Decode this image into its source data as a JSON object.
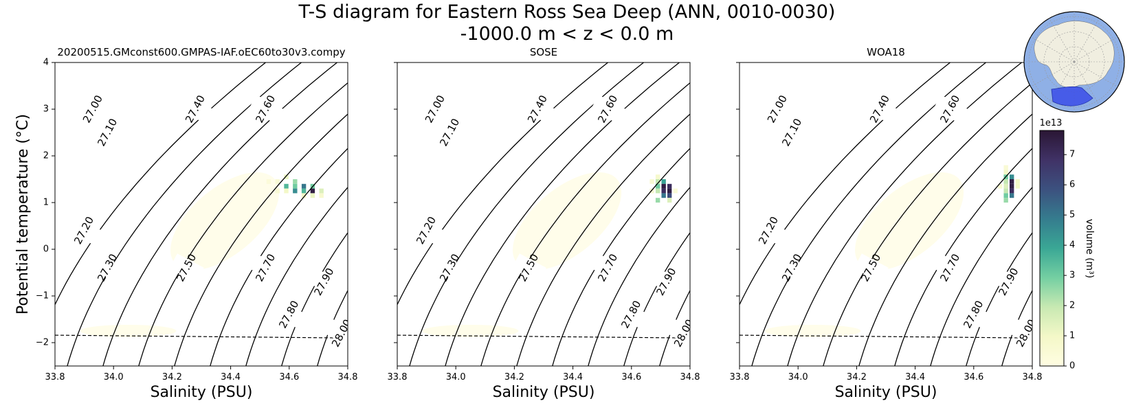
{
  "figure": {
    "title_line1": "T-S diagram for Eastern Ross Sea Deep (ANN, 0010-0030)",
    "title_line2": "-1000.0 m < z < 0.0 m"
  },
  "chart_data": [
    {
      "type": "heatmap",
      "title": "20200515.GMconst600.GMPAS-IAF.oEC60to30v3.compy",
      "xlabel": "Salinity (PSU)",
      "ylabel": "Potential temperature ($^\\circ$C)",
      "xlim": [
        33.8,
        34.8
      ],
      "ylim": [
        -2.5,
        4
      ],
      "xticks": [
        "33.8",
        "34.0",
        "34.2",
        "34.4",
        "34.6",
        "34.8"
      ],
      "yticks": [
        "−2",
        "−1",
        "0",
        "1",
        "2",
        "3",
        "4"
      ],
      "density_contours": [
        "27.00",
        "27.10",
        "27.20",
        "27.30",
        "27.40",
        "27.50",
        "27.60",
        "27.70",
        "27.80",
        "27.90",
        "28.00"
      ],
      "freezing_line": [
        [
          33.8,
          -1.84
        ],
        [
          34.8,
          -1.9
        ]
      ],
      "volume_bins": [
        {
          "s": 34.53,
          "t": 1.45,
          "v": 0.3
        },
        {
          "s": 34.56,
          "t": 1.45,
          "v": 0.5
        },
        {
          "s": 34.59,
          "t": 1.55,
          "v": 1.2
        },
        {
          "s": 34.62,
          "t": 1.45,
          "v": 2.5
        },
        {
          "s": 34.59,
          "t": 1.35,
          "v": 3.5
        },
        {
          "s": 34.62,
          "t": 1.35,
          "v": 3.0
        },
        {
          "s": 34.65,
          "t": 1.35,
          "v": 5.0
        },
        {
          "s": 34.68,
          "t": 1.35,
          "v": 3.0
        },
        {
          "s": 34.62,
          "t": 1.25,
          "v": 4.5
        },
        {
          "s": 34.65,
          "t": 1.25,
          "v": 3.5
        },
        {
          "s": 34.68,
          "t": 1.25,
          "v": 7.5
        },
        {
          "s": 34.71,
          "t": 1.25,
          "v": 1.5
        },
        {
          "s": 34.59,
          "t": 1.25,
          "v": 1.0
        },
        {
          "s": 34.65,
          "t": 1.15,
          "v": 1.0
        },
        {
          "s": 34.68,
          "t": 1.15,
          "v": 1.2
        },
        {
          "s": 34.71,
          "t": 1.15,
          "v": 0.7
        },
        {
          "s": 34.56,
          "t": 1.25,
          "v": 0.5
        }
      ]
    },
    {
      "type": "heatmap",
      "title": "SOSE",
      "xlabel": "Salinity (PSU)",
      "xlim": [
        33.8,
        34.8
      ],
      "ylim": [
        -2.5,
        4
      ],
      "xticks": [
        "33.8",
        "34.0",
        "34.2",
        "34.4",
        "34.6",
        "34.8"
      ],
      "density_contours": [
        "27.00",
        "27.10",
        "27.20",
        "27.30",
        "27.40",
        "27.50",
        "27.60",
        "27.70",
        "27.80",
        "27.90",
        "28.00"
      ],
      "freezing_line": [
        [
          33.8,
          -1.84
        ],
        [
          34.8,
          -1.9
        ]
      ],
      "volume_bins": [
        {
          "s": 34.69,
          "t": 1.55,
          "v": 0.8
        },
        {
          "s": 34.69,
          "t": 1.45,
          "v": 2.0
        },
        {
          "s": 34.69,
          "t": 1.35,
          "v": 3.0
        },
        {
          "s": 34.69,
          "t": 1.25,
          "v": 2.0
        },
        {
          "s": 34.69,
          "t": 1.05,
          "v": 2.5
        },
        {
          "s": 34.71,
          "t": 1.45,
          "v": 4.0
        },
        {
          "s": 34.71,
          "t": 1.35,
          "v": 7.5
        },
        {
          "s": 34.71,
          "t": 1.25,
          "v": 7.0
        },
        {
          "s": 34.71,
          "t": 1.15,
          "v": 5.0
        },
        {
          "s": 34.73,
          "t": 1.35,
          "v": 7.0
        },
        {
          "s": 34.73,
          "t": 1.25,
          "v": 7.5
        },
        {
          "s": 34.73,
          "t": 1.15,
          "v": 6.0
        },
        {
          "s": 34.67,
          "t": 1.25,
          "v": 0.6
        },
        {
          "s": 34.67,
          "t": 1.45,
          "v": 0.6
        },
        {
          "s": 34.73,
          "t": 1.05,
          "v": 1.5
        },
        {
          "s": 34.75,
          "t": 1.25,
          "v": 0.5
        }
      ]
    },
    {
      "type": "heatmap",
      "title": "WOA18",
      "xlabel": "Salinity (PSU)",
      "xlim": [
        33.8,
        34.8
      ],
      "ylim": [
        -2.5,
        4
      ],
      "xticks": [
        "33.8",
        "34.0",
        "34.2",
        "34.4",
        "34.6",
        "34.8"
      ],
      "density_contours": [
        "27.00",
        "27.10",
        "27.20",
        "27.30",
        "27.40",
        "27.50",
        "27.60",
        "27.70",
        "27.80",
        "27.90",
        "28.00"
      ],
      "freezing_line": [
        [
          33.8,
          -1.84
        ],
        [
          34.8,
          -1.9
        ]
      ],
      "volume_bins": [
        {
          "s": 34.71,
          "t": 1.75,
          "v": 0.5
        },
        {
          "s": 34.71,
          "t": 1.65,
          "v": 1.0
        },
        {
          "s": 34.71,
          "t": 1.55,
          "v": 3.0
        },
        {
          "s": 34.71,
          "t": 1.45,
          "v": 2.0
        },
        {
          "s": 34.71,
          "t": 1.35,
          "v": 1.5
        },
        {
          "s": 34.71,
          "t": 1.25,
          "v": 2.0
        },
        {
          "s": 34.71,
          "t": 1.15,
          "v": 3.0
        },
        {
          "s": 34.71,
          "t": 1.05,
          "v": 2.5
        },
        {
          "s": 34.73,
          "t": 1.55,
          "v": 4.5
        },
        {
          "s": 34.73,
          "t": 1.45,
          "v": 7.5
        },
        {
          "s": 34.73,
          "t": 1.35,
          "v": 7.5
        },
        {
          "s": 34.73,
          "t": 1.25,
          "v": 7.0
        },
        {
          "s": 34.73,
          "t": 1.15,
          "v": 5.0
        },
        {
          "s": 34.75,
          "t": 1.45,
          "v": 1.0
        },
        {
          "s": 34.75,
          "t": 1.35,
          "v": 1.0
        },
        {
          "s": 34.69,
          "t": 1.35,
          "v": 0.6
        }
      ]
    }
  ],
  "colorbar": {
    "label": "volume (m$^3$)",
    "exponent": "1e13",
    "ticks": [
      "0",
      "1",
      "2",
      "3",
      "4",
      "5",
      "6",
      "7"
    ],
    "max": 7.8,
    "colormap": [
      "#fffde2",
      "#f4f8c8",
      "#c8e9b2",
      "#74cfa2",
      "#3aa795",
      "#357c8e",
      "#3c517f",
      "#403266",
      "#2a1634"
    ]
  },
  "inset_map": {
    "ocean_color": "#8fb0e6",
    "land_color": "#f0eee0",
    "region_color": "#3b4ee8"
  }
}
